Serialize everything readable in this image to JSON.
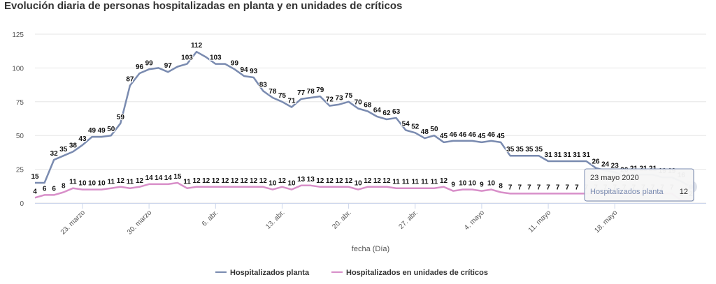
{
  "chart_data": {
    "type": "line",
    "title": "Evolución diaria de personas hospitalizadas en planta y en unidades de críticos",
    "xlabel": "fecha (Día)",
    "ylabel": "",
    "ylim": [
      0,
      125
    ],
    "yticks": [
      "0",
      "25",
      "50",
      "75",
      "100",
      "125"
    ],
    "x_tick_labels": [
      {
        "label": "23. marzo",
        "index": 5
      },
      {
        "label": "30. marzo",
        "index": 12
      },
      {
        "label": "6. abr.",
        "index": 19
      },
      {
        "label": "13. abr.",
        "index": 26
      },
      {
        "label": "20. abr.",
        "index": 33
      },
      {
        "label": "27. abr.",
        "index": 40
      },
      {
        "label": "4. mayo",
        "index": 47
      },
      {
        "label": "11. mayo",
        "index": 54
      },
      {
        "label": "18. mayo",
        "index": 61
      }
    ],
    "grid": true,
    "legend_position": "bottom",
    "series": [
      {
        "name": "Hospitalizados planta",
        "color": "#7a8bb0",
        "values": [
          15,
          15,
          32,
          35,
          38,
          43,
          49,
          49,
          50,
          59,
          87,
          96,
          99,
          100,
          97,
          101,
          103,
          112,
          108,
          103,
          103,
          99,
          94,
          93,
          83,
          78,
          75,
          71,
          77,
          78,
          79,
          72,
          73,
          75,
          70,
          68,
          64,
          62,
          63,
          54,
          52,
          48,
          50,
          45,
          46,
          46,
          46,
          45,
          46,
          45,
          35,
          35,
          35,
          35,
          31,
          31,
          31,
          31,
          31,
          26,
          24,
          23,
          20,
          21,
          21,
          21,
          19,
          19,
          16,
          12
        ],
        "labels": [
          "15",
          "",
          "32",
          "35",
          "38",
          "43",
          "49",
          "49",
          "50",
          "59",
          "87",
          "96",
          "99",
          "",
          "97",
          "",
          "103",
          "112",
          "",
          "103",
          "",
          "99",
          "94",
          "93",
          "83",
          "78",
          "75",
          "71",
          "77",
          "78",
          "79",
          "72",
          "73",
          "75",
          "70",
          "68",
          "64",
          "62",
          "63",
          "54",
          "52",
          "48",
          "50",
          "45",
          "46",
          "46",
          "46",
          "45",
          "46",
          "45",
          "35",
          "35",
          "35",
          "35",
          "31",
          "31",
          "31",
          "31",
          "31",
          "26",
          "24",
          "23",
          "20",
          "21",
          "21",
          "21",
          "19",
          "19",
          "16",
          ""
        ]
      },
      {
        "name": "Hospitalizados en unidades de críticos",
        "color": "#d88fc9",
        "values": [
          4,
          6,
          6,
          8,
          11,
          10,
          10,
          10,
          11,
          12,
          11,
          12,
          14,
          14,
          14,
          15,
          11,
          12,
          12,
          12,
          12,
          12,
          12,
          12,
          12,
          10,
          12,
          10,
          13,
          13,
          12,
          12,
          12,
          12,
          10,
          12,
          12,
          12,
          11,
          11,
          11,
          11,
          11,
          12,
          9,
          10,
          10,
          9,
          10,
          8,
          7,
          7,
          7,
          7,
          7,
          7,
          7,
          7,
          7,
          7,
          7,
          7,
          7,
          7,
          7,
          7,
          7,
          7,
          2,
          2
        ],
        "labels": [
          "4",
          "6",
          "6",
          "8",
          "11",
          "10",
          "10",
          "10",
          "11",
          "12",
          "11",
          "12",
          "14",
          "14",
          "14",
          "15",
          "11",
          "12",
          "12",
          "12",
          "12",
          "12",
          "12",
          "12",
          "12",
          "10",
          "12",
          "10",
          "13",
          "13",
          "12",
          "12",
          "12",
          "12",
          "10",
          "12",
          "12",
          "12",
          "11",
          "11",
          "11",
          "11",
          "11",
          "12",
          "9",
          "10",
          "10",
          "9",
          "10",
          "8",
          "7",
          "7",
          "7",
          "7",
          "7",
          "7",
          "7",
          "7",
          "7",
          "7",
          "7",
          "7",
          "7",
          "7",
          "7",
          "7",
          "7",
          "7",
          "2",
          "2"
        ]
      }
    ],
    "tooltip": {
      "date": "23 mayo 2020",
      "series": "Hospitalizados planta",
      "value": "12",
      "index": 69
    }
  }
}
